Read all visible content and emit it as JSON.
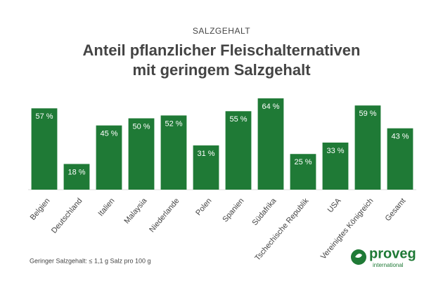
{
  "chart_data": {
    "type": "bar",
    "kicker": "SALZGEHALT",
    "title": [
      "Anteil pflanzlicher Fleischalternativen",
      "mit geringem Salzgehalt"
    ],
    "categories": [
      "Belgien",
      "Deutschland",
      "Italien",
      "Malaysia",
      "Niederlande",
      "Polen",
      "Spanien",
      "Südafrika",
      "Tschechische Republik",
      "USA",
      "Vereinigtes Königreich",
      "Gesamt"
    ],
    "values": [
      57,
      18,
      45,
      50,
      52,
      31,
      55,
      64,
      25,
      33,
      59,
      43
    ],
    "value_labels": [
      "57 %",
      "18 %",
      "45 %",
      "50 %",
      "52 %",
      "31 %",
      "55 %",
      "64 %",
      "25 %",
      "33 %",
      "59 %",
      "43 %"
    ],
    "color": "#1f7a36",
    "ylim": [
      0,
      65
    ],
    "footnote": "Geringer Salzgehalt: ≤ 1,1 g Salz pro 100 g",
    "logo": {
      "name": "proveg",
      "subtitle": "international"
    }
  }
}
